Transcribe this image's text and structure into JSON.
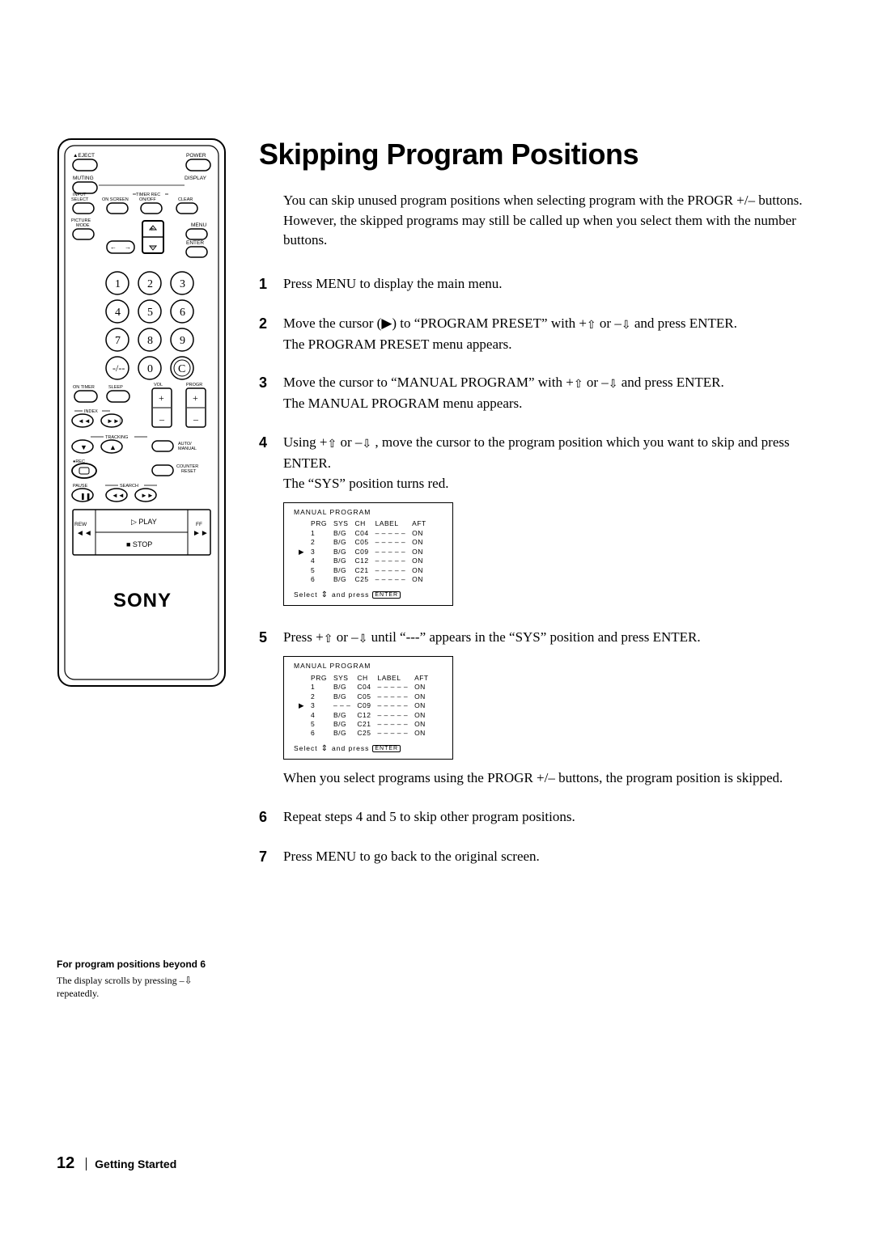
{
  "title": "Skipping Program Positions",
  "intro": "You can skip unused program positions when selecting program with the PROGR +/– buttons.  However, the skipped programs may still be called up when you select them with the number buttons.",
  "steps": [
    {
      "num": "1",
      "html": "Press MENU to display the main menu."
    },
    {
      "num": "2",
      "html": "Move the cursor (▶) to “PROGRAM PRESET” with +<span class='uparr'>⇧</span> or –<span class='dnarr'>⇩</span> and press ENTER.<br>The PROGRAM PRESET menu appears."
    },
    {
      "num": "3",
      "html": "Move the cursor to “MANUAL PROGRAM” with +<span class='uparr'>⇧</span> or –<span class='dnarr'>⇩</span> and press ENTER.<br>The MANUAL PROGRAM menu appears."
    },
    {
      "num": "4",
      "html": "Using +<span class='uparr'>⇧</span> or –<span class='dnarr'>⇩</span> , move the cursor to the program position which you want to skip and press ENTER.<br>The “SYS” position turns red."
    },
    {
      "num": "5",
      "html": "Press +<span class='uparr'>⇧</span> or –<span class='dnarr'>⇩</span> until “---” appears in the “SYS” position and press ENTER."
    },
    {
      "num": "6",
      "html": "Repeat steps 4 and 5 to skip other program positions."
    },
    {
      "num": "7",
      "html": "Press MENU to go back to the original screen."
    }
  ],
  "table_title": "MANUAL  PROGRAM",
  "table_headers": [
    "PRG",
    "SYS",
    "CH",
    "LABEL",
    "AFT"
  ],
  "table1_rows": [
    [
      "",
      "1",
      "B/G",
      "C04",
      "– – – – –",
      "ON"
    ],
    [
      "",
      "2",
      "B/G",
      "C05",
      "– – – – –",
      "ON"
    ],
    [
      "▶",
      "3",
      "B/G",
      "C09",
      "– – – – –",
      "ON"
    ],
    [
      "",
      "4",
      "B/G",
      "C12",
      "– – – – –",
      "ON"
    ],
    [
      "",
      "5",
      "B/G",
      "C21",
      "– – – – –",
      "ON"
    ],
    [
      "",
      "6",
      "B/G",
      "C25",
      "– – – – –",
      "ON"
    ]
  ],
  "table2_rows": [
    [
      "",
      "1",
      "B/G",
      "C04",
      "– – – – –",
      "ON"
    ],
    [
      "",
      "2",
      "B/G",
      "C05",
      "– – – – –",
      "ON"
    ],
    [
      "▶",
      "3",
      "– – –",
      "C09",
      "– – – – –",
      "ON"
    ],
    [
      "",
      "4",
      "B/G",
      "C12",
      "– – – – –",
      "ON"
    ],
    [
      "",
      "5",
      "B/G",
      "C21",
      "– – – – –",
      "ON"
    ],
    [
      "",
      "6",
      "B/G",
      "C25",
      "– – – – –",
      "ON"
    ]
  ],
  "table_footer_prefix": "Select",
  "table_footer_mid": "and press",
  "table_footer_btn": "ENTER",
  "after_table2": "When you select programs using the PROGR +/– buttons, the program position is skipped.",
  "footnote_title": "For program positions beyond 6",
  "footnote_body": "The display scrolls by pressing –⇩ repeatedly.",
  "page_number": "12",
  "section_label": "Getting Started",
  "remote_labels": {
    "eject": "EJECT",
    "power": "POWER",
    "muting": "MUTING",
    "display": "DISPLAY",
    "input_select": "INPUT\nSELECT",
    "onscreen": "ON SCREEN",
    "timer_rec": "TIMER REC\nON/OFF",
    "clear": "CLEAR",
    "picture_mode": "PICTURE\nMODE",
    "menu": "MENU",
    "enter": "ENTER",
    "ontimer": "ON TIMER",
    "sleep": "SLEEP",
    "vol": "VOL",
    "progr": "PROGR",
    "index": "INDEX",
    "tracking": "TRACKING",
    "auto_manual": "AUTO/\nMANUAL",
    "rec": "REC",
    "counter_reset": "COUNTER\nRESET",
    "pause": "PAUSE",
    "search": "SEARCH",
    "rew": "REW",
    "play": "PLAY",
    "ff": "FF",
    "stop": "STOP",
    "brand": "SONY"
  }
}
